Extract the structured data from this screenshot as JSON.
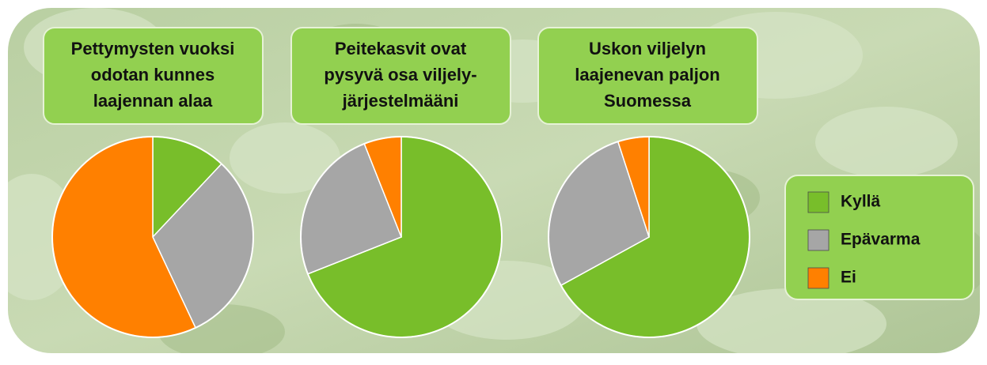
{
  "chart_data": [
    {
      "type": "pie",
      "title": [
        "Pettymysten vuoksi",
        "odotan kunnes",
        "laajennan alaa"
      ],
      "categories": [
        "Kyllä",
        "Epävarma",
        "Ei"
      ],
      "values": [
        12,
        31,
        57
      ],
      "colors": [
        "#78be2a",
        "#a6a6a6",
        "#ff8000"
      ]
    },
    {
      "type": "pie",
      "title": [
        "Peitekasvit ovat",
        "pysyvä osa viljely-",
        "järjestelmääni"
      ],
      "categories": [
        "Kyllä",
        "Epävarma",
        "Ei"
      ],
      "values": [
        69,
        25,
        6
      ],
      "colors": [
        "#78be2a",
        "#a6a6a6",
        "#ff8000"
      ]
    },
    {
      "type": "pie",
      "title": [
        "Uskon viljelyn",
        "laajenevan paljon",
        "Suomessa"
      ],
      "categories": [
        "Kyllä",
        "Epävarma",
        "Ei"
      ],
      "values": [
        67,
        28,
        5
      ],
      "colors": [
        "#78be2a",
        "#a6a6a6",
        "#ff8000"
      ]
    }
  ]
}
